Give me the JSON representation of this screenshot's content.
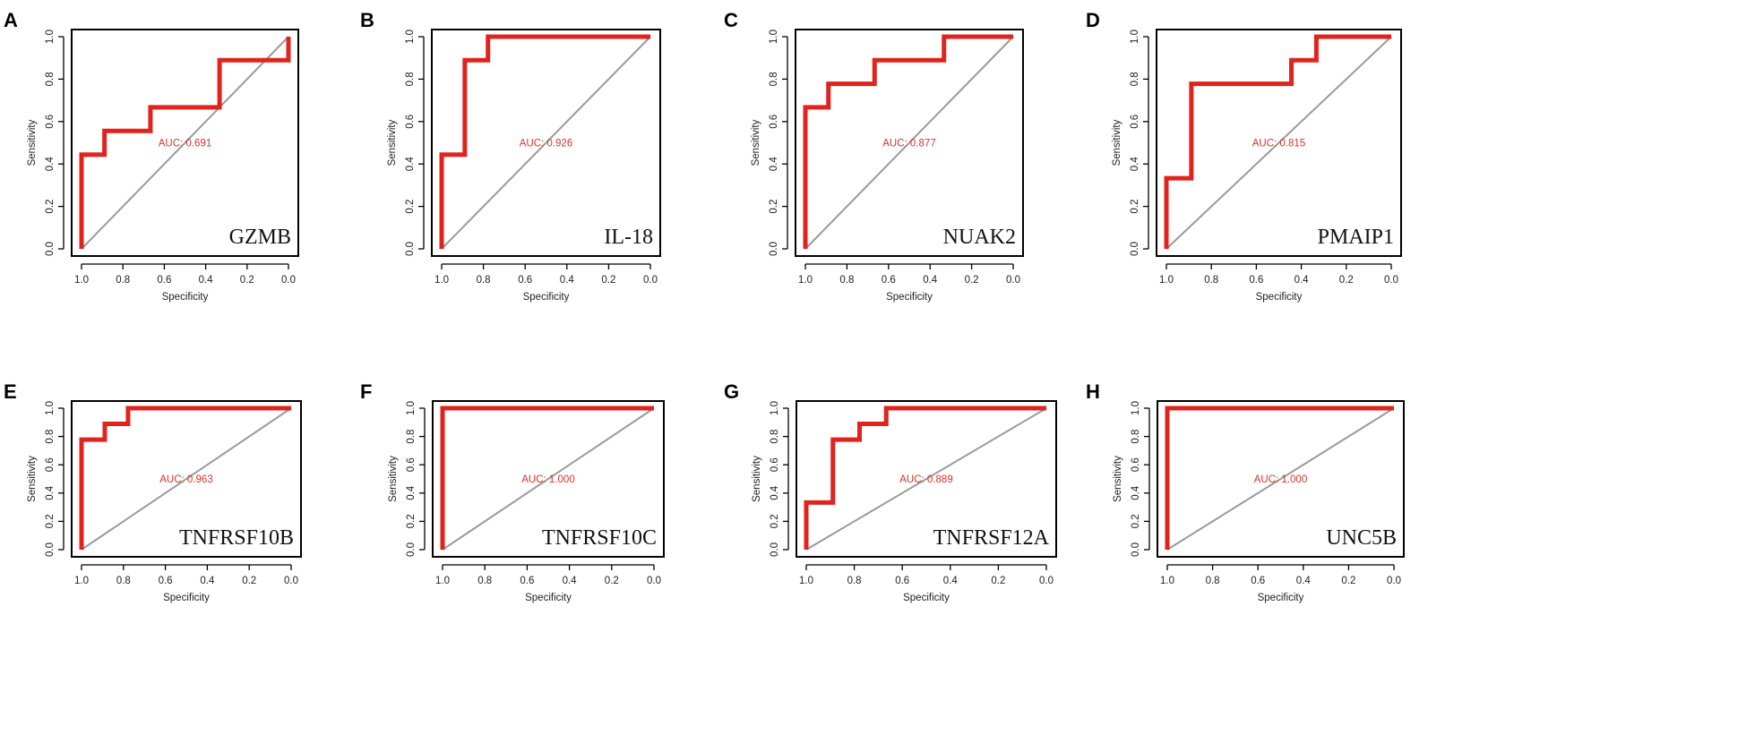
{
  "chart_data": [
    {
      "panel": "A",
      "type": "line",
      "gene": "GZMB",
      "auc_text": "AUC: 0.691",
      "xlabel": "Specificity",
      "ylabel": "Sensitivity",
      "xlim": [
        1.0,
        0.0
      ],
      "ylim": [
        0.0,
        1.0
      ],
      "xticks": [
        "1.0",
        "0.8",
        "0.6",
        "0.4",
        "0.2",
        "0.0"
      ],
      "yticks": [
        "0.0",
        "0.2",
        "0.4",
        "0.6",
        "0.8",
        "1.0"
      ],
      "roc": {
        "specificity": [
          1.0,
          1.0,
          0.889,
          0.889,
          0.667,
          0.667,
          0.333,
          0.333,
          0.0,
          0.0
        ],
        "sensitivity": [
          0.0,
          0.444,
          0.444,
          0.556,
          0.556,
          0.667,
          0.667,
          0.889,
          0.889,
          1.0
        ]
      }
    },
    {
      "panel": "B",
      "type": "line",
      "gene": "IL-18",
      "auc_text": "AUC: 0.926",
      "xlabel": "Specificity",
      "ylabel": "Sensitivity",
      "xlim": [
        1.0,
        0.0
      ],
      "ylim": [
        0.0,
        1.0
      ],
      "xticks": [
        "1.0",
        "0.8",
        "0.6",
        "0.4",
        "0.2",
        "0.0"
      ],
      "yticks": [
        "0.0",
        "0.2",
        "0.4",
        "0.6",
        "0.8",
        "1.0"
      ],
      "roc": {
        "specificity": [
          1.0,
          1.0,
          0.889,
          0.889,
          0.778,
          0.778,
          0.0
        ],
        "sensitivity": [
          0.0,
          0.444,
          0.444,
          0.889,
          0.889,
          1.0,
          1.0
        ]
      }
    },
    {
      "panel": "C",
      "type": "line",
      "gene": "NUAK2",
      "auc_text": "AUC: 0.877",
      "xlabel": "Specificity",
      "ylabel": "Sensitivity",
      "xlim": [
        1.0,
        0.0
      ],
      "ylim": [
        0.0,
        1.0
      ],
      "xticks": [
        "1.0",
        "0.8",
        "0.6",
        "0.4",
        "0.2",
        "0.0"
      ],
      "yticks": [
        "0.0",
        "0.2",
        "0.4",
        "0.6",
        "0.8",
        "1.0"
      ],
      "roc": {
        "specificity": [
          1.0,
          1.0,
          0.889,
          0.889,
          0.667,
          0.667,
          0.333,
          0.333,
          0.0
        ],
        "sensitivity": [
          0.0,
          0.667,
          0.667,
          0.778,
          0.778,
          0.889,
          0.889,
          1.0,
          1.0
        ]
      }
    },
    {
      "panel": "D",
      "type": "line",
      "gene": "PMAIP1",
      "auc_text": "AUC: 0.815",
      "xlabel": "Specificity",
      "ylabel": "Sensitivity",
      "xlim": [
        1.0,
        0.0
      ],
      "ylim": [
        0.0,
        1.0
      ],
      "xticks": [
        "1.0",
        "0.8",
        "0.6",
        "0.4",
        "0.2",
        "0.0"
      ],
      "yticks": [
        "0.0",
        "0.2",
        "0.4",
        "0.6",
        "0.8",
        "1.0"
      ],
      "roc": {
        "specificity": [
          1.0,
          1.0,
          0.889,
          0.889,
          0.444,
          0.444,
          0.333,
          0.333,
          0.0
        ],
        "sensitivity": [
          0.0,
          0.333,
          0.333,
          0.778,
          0.778,
          0.889,
          0.889,
          1.0,
          1.0
        ]
      }
    },
    {
      "panel": "E",
      "type": "line",
      "gene": "TNFRSF10B",
      "auc_text": "AUC: 0.963",
      "xlabel": "Specificity",
      "ylabel": "Sensitivity",
      "xlim": [
        1.0,
        0.0
      ],
      "ylim": [
        0.0,
        1.0
      ],
      "xticks": [
        "1.0",
        "0.8",
        "0.6",
        "0.4",
        "0.2",
        "0.0"
      ],
      "yticks": [
        "0.0",
        "0.2",
        "0.4",
        "0.6",
        "0.8",
        "1.0"
      ],
      "roc": {
        "specificity": [
          1.0,
          1.0,
          0.889,
          0.889,
          0.778,
          0.778,
          0.0
        ],
        "sensitivity": [
          0.0,
          0.778,
          0.778,
          0.889,
          0.889,
          1.0,
          1.0
        ]
      }
    },
    {
      "panel": "F",
      "type": "line",
      "gene": "TNFRSF10C",
      "auc_text": "AUC: 1.000",
      "xlabel": "Specificity",
      "ylabel": "Sensitivity",
      "xlim": [
        1.0,
        0.0
      ],
      "ylim": [
        0.0,
        1.0
      ],
      "xticks": [
        "1.0",
        "0.8",
        "0.6",
        "0.4",
        "0.2",
        "0.0"
      ],
      "yticks": [
        "0.0",
        "0.2",
        "0.4",
        "0.6",
        "0.8",
        "1.0"
      ],
      "roc": {
        "specificity": [
          1.0,
          1.0,
          0.0
        ],
        "sensitivity": [
          0.0,
          1.0,
          1.0
        ]
      }
    },
    {
      "panel": "G",
      "type": "line",
      "gene": "TNFRSF12A",
      "auc_text": "AUC: 0.889",
      "xlabel": "Specificity",
      "ylabel": "Sensitivity",
      "xlim": [
        1.0,
        0.0
      ],
      "ylim": [
        0.0,
        1.0
      ],
      "xticks": [
        "1.0",
        "0.8",
        "0.6",
        "0.4",
        "0.2",
        "0.0"
      ],
      "yticks": [
        "0.0",
        "0.2",
        "0.4",
        "0.6",
        "0.8",
        "1.0"
      ],
      "roc": {
        "specificity": [
          1.0,
          1.0,
          0.889,
          0.889,
          0.778,
          0.778,
          0.667,
          0.667,
          0.0
        ],
        "sensitivity": [
          0.0,
          0.333,
          0.333,
          0.778,
          0.778,
          0.889,
          0.889,
          1.0,
          1.0
        ]
      }
    },
    {
      "panel": "H",
      "type": "line",
      "gene": "UNC5B",
      "auc_text": "AUC: 1.000",
      "xlabel": "Specificity",
      "ylabel": "Sensitivity",
      "xlim": [
        1.0,
        0.0
      ],
      "ylim": [
        0.0,
        1.0
      ],
      "xticks": [
        "1.0",
        "0.8",
        "0.6",
        "0.4",
        "0.2",
        "0.0"
      ],
      "yticks": [
        "0.0",
        "0.2",
        "0.4",
        "0.6",
        "0.8",
        "1.0"
      ],
      "roc": {
        "specificity": [
          1.0,
          1.0,
          0.0
        ],
        "sensitivity": [
          0.0,
          1.0,
          1.0
        ]
      }
    }
  ],
  "colors": {
    "roc_curve": "#e0231c",
    "diagonal": "#9a9a9a",
    "auc_text": "#e0302a",
    "frame": "#000000"
  }
}
